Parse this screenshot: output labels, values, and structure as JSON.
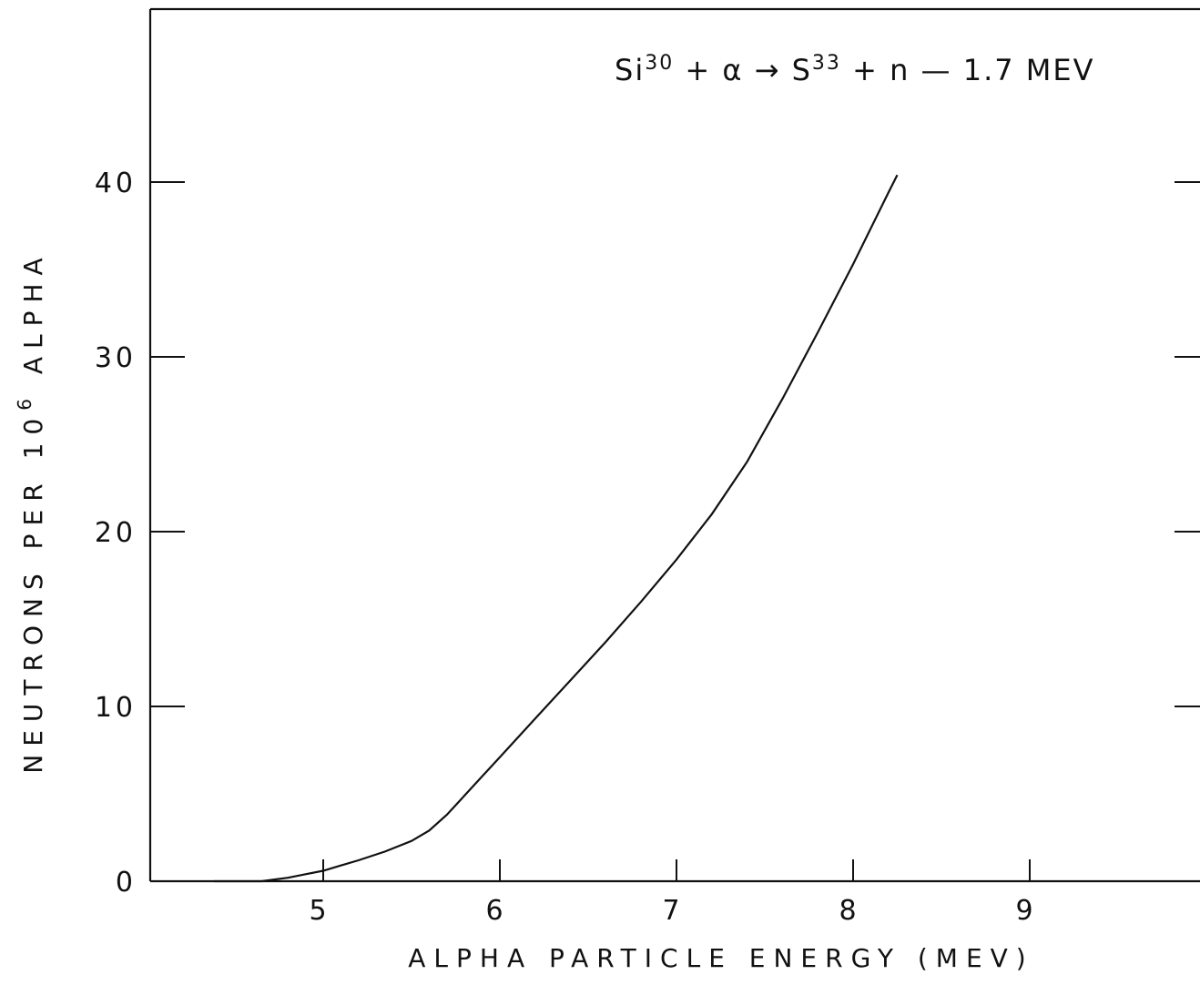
{
  "chart_data": {
    "type": "line",
    "title": "",
    "annotation": {
      "parts": [
        {
          "text": "Si",
          "sup": "30"
        },
        {
          "text": "+ α → S",
          "sup": "33"
        },
        {
          "text": "+ n — 1.7 MEV",
          "sup": ""
        }
      ]
    },
    "xlabel": "ALPHA PARTICLE ENERGY (MEV)",
    "ylabel": {
      "prefix": "NEUTRONS PER 10",
      "sup": "6",
      "suffix": " ALPHA"
    },
    "xlim": [
      4.0,
      10.0
    ],
    "ylim": [
      0,
      50
    ],
    "xticks": [
      5,
      6,
      7,
      8,
      9
    ],
    "yticks": [
      0,
      10,
      20,
      30,
      40
    ],
    "grid": false,
    "series": [
      {
        "x": [
          4.0,
          4.5,
          4.65,
          4.8,
          4.9,
          5.0,
          5.1,
          5.2,
          5.35,
          5.5,
          5.6,
          5.7,
          5.8,
          5.9,
          6.0,
          6.2,
          6.4,
          6.6,
          6.8,
          7.0,
          7.2,
          7.4,
          7.6,
          7.8,
          8.0,
          8.2,
          8.25
        ],
        "y": [
          0,
          0,
          0,
          0.2,
          0.4,
          0.6,
          0.9,
          1.2,
          1.7,
          2.3,
          2.9,
          3.8,
          4.9,
          6.0,
          7.1,
          9.3,
          11.5,
          13.7,
          16.0,
          18.4,
          21.0,
          24.0,
          27.6,
          31.4,
          35.3,
          39.4,
          40.4
        ]
      }
    ]
  }
}
